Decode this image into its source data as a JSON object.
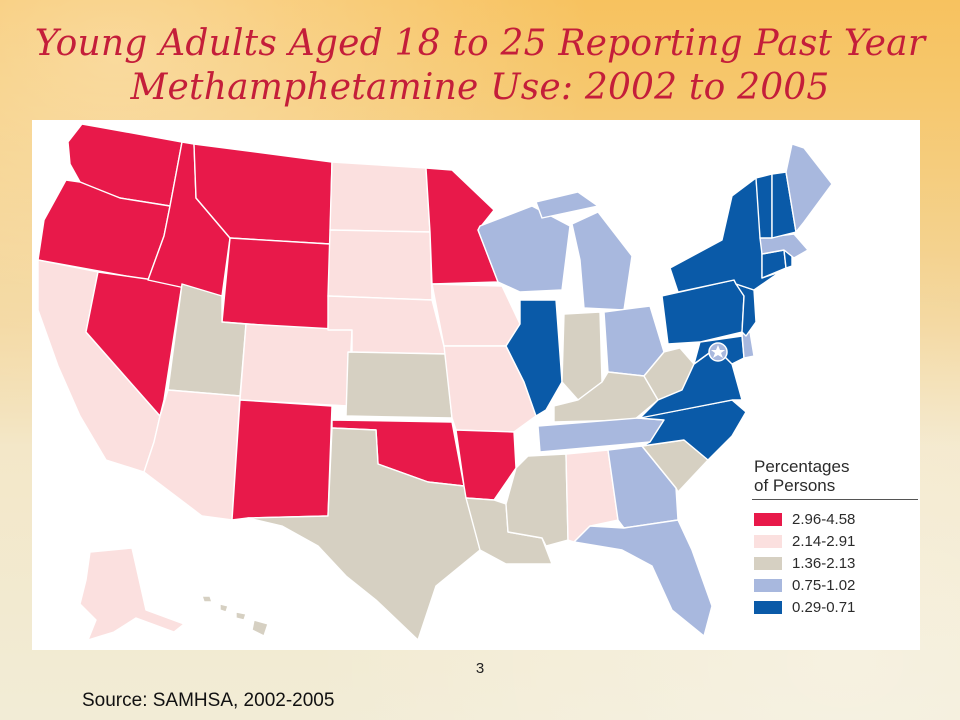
{
  "title": {
    "line1": "Young Adults Aged 18 to 25 Reporting Past Year",
    "line2": "Methamphetamine Use: 2002 to 2005"
  },
  "legend": {
    "title_line1": "Percentages",
    "title_line2": "of Persons",
    "items": [
      {
        "label": "2.96-4.58",
        "color": "#e8194a"
      },
      {
        "label": "2.14-2.91",
        "color": "#fbe0df"
      },
      {
        "label": "1.36-2.13",
        "color": "#d6d0c2"
      },
      {
        "label": "0.75-1.02",
        "color": "#a8b8de"
      },
      {
        "label": "0.29-0.71",
        "color": "#0a5aa8"
      }
    ]
  },
  "states": {
    "WA": "2.96-4.58",
    "OR": "2.96-4.58",
    "ID": "2.96-4.58",
    "MT": "2.96-4.58",
    "WY": "2.96-4.58",
    "NV": "2.96-4.58",
    "NM": "2.96-4.58",
    "OK": "2.96-4.58",
    "AR": "2.96-4.58",
    "MN": "2.96-4.58",
    "CA": "2.14-2.91",
    "AZ": "2.14-2.91",
    "CO": "2.14-2.91",
    "ND": "2.14-2.91",
    "SD": "2.14-2.91",
    "NE": "2.14-2.91",
    "IA": "2.14-2.91",
    "MO": "2.14-2.91",
    "AL": "2.14-2.91",
    "AK": "2.14-2.91",
    "UT": "1.36-2.13",
    "KS": "1.36-2.13",
    "TX": "1.36-2.13",
    "LA": "1.36-2.13",
    "MS": "1.36-2.13",
    "IN": "1.36-2.13",
    "KY": "1.36-2.13",
    "WV": "1.36-2.13",
    "SC": "1.36-2.13",
    "HI": "1.36-2.13",
    "WI": "0.75-1.02",
    "MI": "0.75-1.02",
    "OH": "0.75-1.02",
    "TN": "0.75-1.02",
    "GA": "0.75-1.02",
    "FL": "0.75-1.02",
    "ME": "0.75-1.02",
    "MA": "0.75-1.02",
    "DE": "0.75-1.02",
    "IL": "0.29-0.71",
    "NY": "0.29-0.71",
    "PA": "0.29-0.71",
    "NJ": "0.29-0.71",
    "VA": "0.29-0.71",
    "NC": "0.29-0.71",
    "MD": "0.29-0.71",
    "VT": "0.29-0.71",
    "NH": "0.29-0.71",
    "CT": "0.29-0.71",
    "RI": "0.29-0.71"
  },
  "page_number": "3",
  "source": "Source: SAMHSA, 2002-2005"
}
